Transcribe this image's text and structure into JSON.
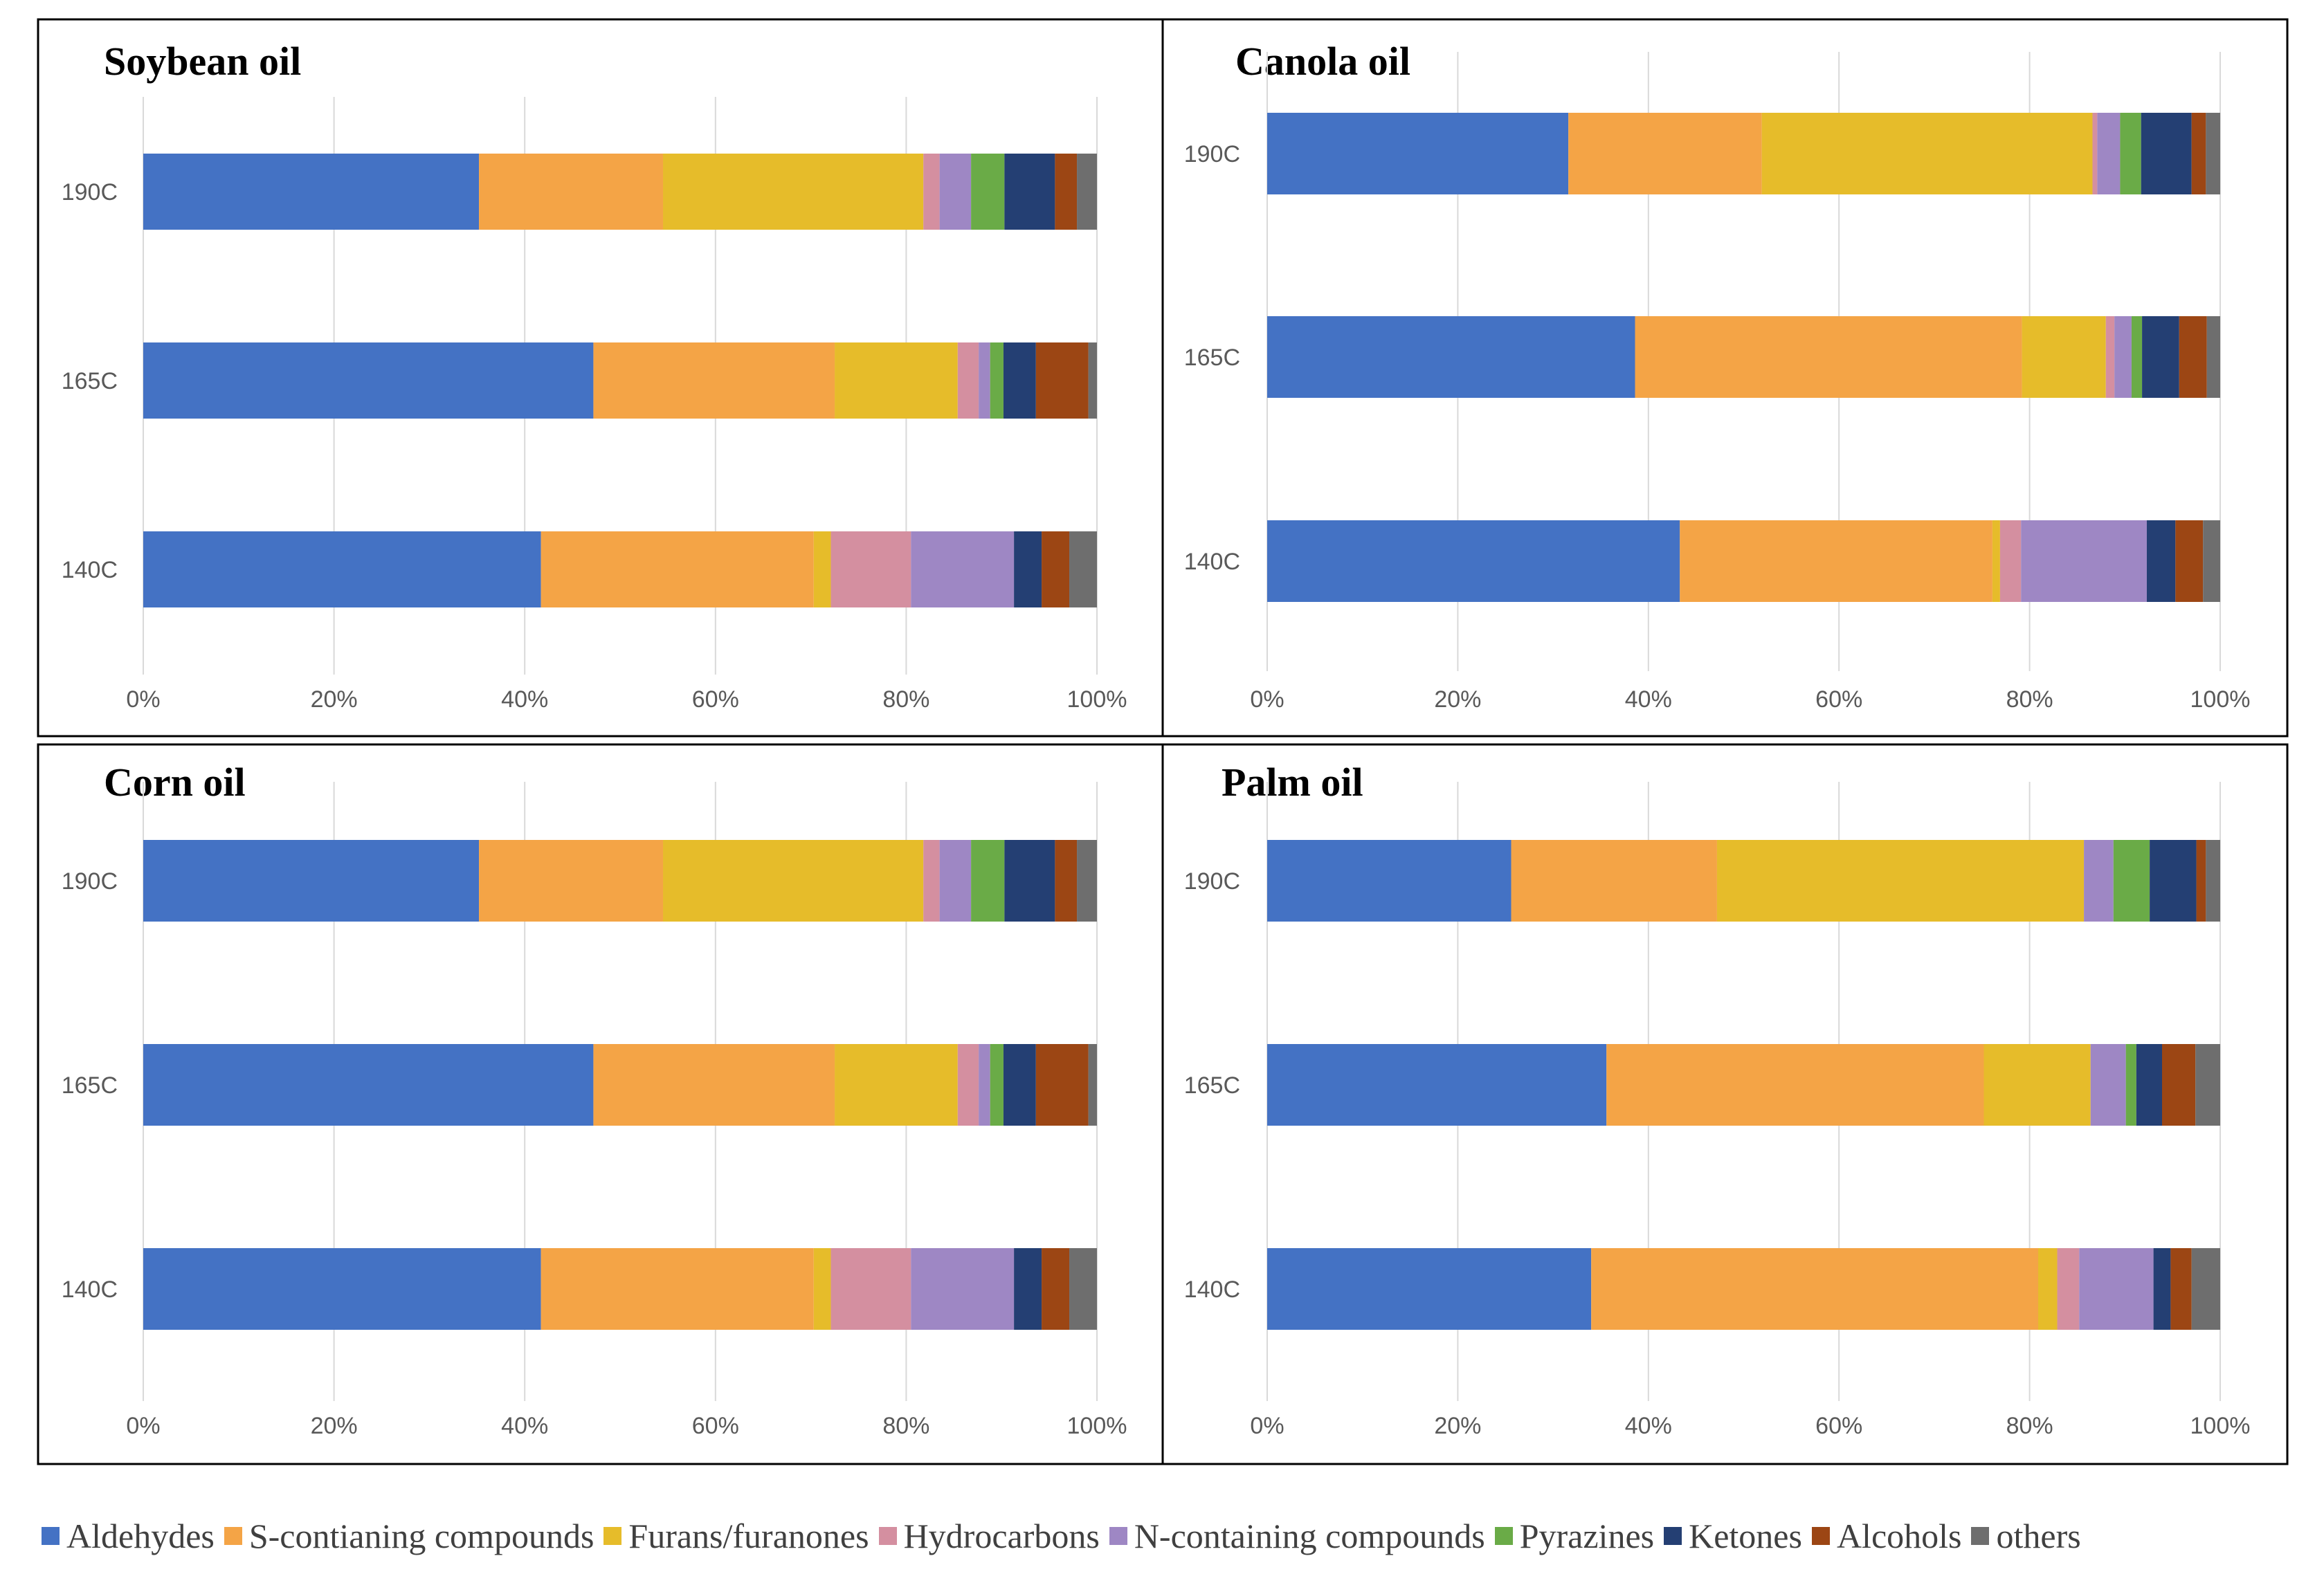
{
  "chart_data": [
    {
      "type": "bar",
      "orientation": "horizontal",
      "stacked": true,
      "title": "Soybean oil",
      "categories": [
        "190C",
        "165C",
        "140C"
      ],
      "xlim": [
        0,
        100
      ],
      "x_ticks": [
        "0%",
        "20%",
        "40%",
        "60%",
        "80%",
        "100%"
      ],
      "grid": true,
      "series": [
        {
          "name": "Aldehydes",
          "values": [
            35.2,
            47.2,
            41.7
          ]
        },
        {
          "name": "S-contianing compounds",
          "values": [
            19.3,
            25.3,
            28.6
          ]
        },
        {
          "name": "Furans/furanones",
          "values": [
            27.3,
            12.9,
            1.8
          ]
        },
        {
          "name": "Hydrocarbons",
          "values": [
            1.7,
            2.2,
            8.4
          ]
        },
        {
          "name": "N-containing compounds",
          "values": [
            3.3,
            1.2,
            10.8
          ]
        },
        {
          "name": "Pyrazines",
          "values": [
            3.5,
            1.4,
            0
          ]
        },
        {
          "name": "Ketones",
          "values": [
            5.3,
            3.4,
            2.9
          ]
        },
        {
          "name": "Alcohols",
          "values": [
            2.3,
            5.5,
            2.9
          ]
        },
        {
          "name": "others",
          "values": [
            2.1,
            0.9,
            2.9
          ]
        }
      ]
    },
    {
      "type": "bar",
      "orientation": "horizontal",
      "stacked": true,
      "title": "Canola oil",
      "categories": [
        "190C",
        "165C",
        "140C"
      ],
      "xlim": [
        0,
        100
      ],
      "x_ticks": [
        "0%",
        "20%",
        "40%",
        "60%",
        "80%",
        "100%"
      ],
      "grid": true,
      "series": [
        {
          "name": "Aldehydes",
          "values": [
            31.6,
            38.6,
            43.3
          ]
        },
        {
          "name": "S-contianing compounds",
          "values": [
            20.3,
            40.6,
            32.8
          ]
        },
        {
          "name": "Furans/furanones",
          "values": [
            34.7,
            8.8,
            0.8
          ]
        },
        {
          "name": "Hydrocarbons",
          "values": [
            0.5,
            0.9,
            2.2
          ]
        },
        {
          "name": "N-containing compounds",
          "values": [
            2.4,
            1.8,
            13.2
          ]
        },
        {
          "name": "Pyrazines",
          "values": [
            2.2,
            1.1,
            0
          ]
        },
        {
          "name": "Ketones",
          "values": [
            5.3,
            3.9,
            3.0
          ]
        },
        {
          "name": "Alcohols",
          "values": [
            1.5,
            2.9,
            2.9
          ]
        },
        {
          "name": "others",
          "values": [
            1.5,
            1.4,
            1.8
          ]
        }
      ]
    },
    {
      "type": "bar",
      "orientation": "horizontal",
      "stacked": true,
      "title": "Corn oil",
      "categories": [
        "190C",
        "165C",
        "140C"
      ],
      "xlim": [
        0,
        100
      ],
      "x_ticks": [
        "0%",
        "20%",
        "40%",
        "60%",
        "80%",
        "100%"
      ],
      "grid": true,
      "series": [
        {
          "name": "Aldehydes",
          "values": [
            35.2,
            47.2,
            41.7
          ]
        },
        {
          "name": "S-contianing compounds",
          "values": [
            19.3,
            25.3,
            28.6
          ]
        },
        {
          "name": "Furans/furanones",
          "values": [
            27.3,
            12.9,
            1.8
          ]
        },
        {
          "name": "Hydrocarbons",
          "values": [
            1.7,
            2.2,
            8.4
          ]
        },
        {
          "name": "N-containing compounds",
          "values": [
            3.3,
            1.2,
            10.8
          ]
        },
        {
          "name": "Pyrazines",
          "values": [
            3.5,
            1.4,
            0
          ]
        },
        {
          "name": "Ketones",
          "values": [
            5.3,
            3.4,
            2.9
          ]
        },
        {
          "name": "Alcohols",
          "values": [
            2.3,
            5.5,
            2.9
          ]
        },
        {
          "name": "others",
          "values": [
            2.1,
            0.9,
            2.9
          ]
        }
      ]
    },
    {
      "type": "bar",
      "orientation": "horizontal",
      "stacked": true,
      "title": "Palm oil",
      "categories": [
        "190C",
        "165C",
        "140C"
      ],
      "xlim": [
        0,
        100
      ],
      "x_ticks": [
        "0%",
        "20%",
        "40%",
        "60%",
        "80%",
        "100%"
      ],
      "grid": true,
      "series": [
        {
          "name": "Aldehydes",
          "values": [
            25.6,
            35.6,
            34.0
          ]
        },
        {
          "name": "S-contianing compounds",
          "values": [
            21.6,
            39.6,
            46.9
          ]
        },
        {
          "name": "Furans/furanones",
          "values": [
            38.5,
            11.2,
            2.0
          ]
        },
        {
          "name": "Hydrocarbons",
          "values": [
            0,
            0,
            2.3
          ]
        },
        {
          "name": "N-containing compounds",
          "values": [
            3.1,
            3.7,
            7.8
          ]
        },
        {
          "name": "Pyrazines",
          "values": [
            3.8,
            1.1,
            0
          ]
        },
        {
          "name": "Ketones",
          "values": [
            4.9,
            2.7,
            1.8
          ]
        },
        {
          "name": "Alcohols",
          "values": [
            1.0,
            3.5,
            2.2
          ]
        },
        {
          "name": "others",
          "values": [
            1.5,
            2.6,
            3.0
          ]
        }
      ]
    }
  ],
  "legend": [
    {
      "name": "Aldehydes",
      "color": "#4472C4"
    },
    {
      "name": "S-contianing compounds",
      "color": "#F4A446"
    },
    {
      "name": "Furans/furanones",
      "color": "#E6BC2A"
    },
    {
      "name": "Hydrocarbons",
      "color": "#D48FA0"
    },
    {
      "name": "N-containing compounds",
      "color": "#9E87C4"
    },
    {
      "name": "Pyrazines",
      "color": "#6AAB47"
    },
    {
      "name": "Ketones",
      "color": "#243F73"
    },
    {
      "name": "Alcohols",
      "color": "#9C4614"
    },
    {
      "name": "others",
      "color": "#6E6E6E"
    }
  ]
}
